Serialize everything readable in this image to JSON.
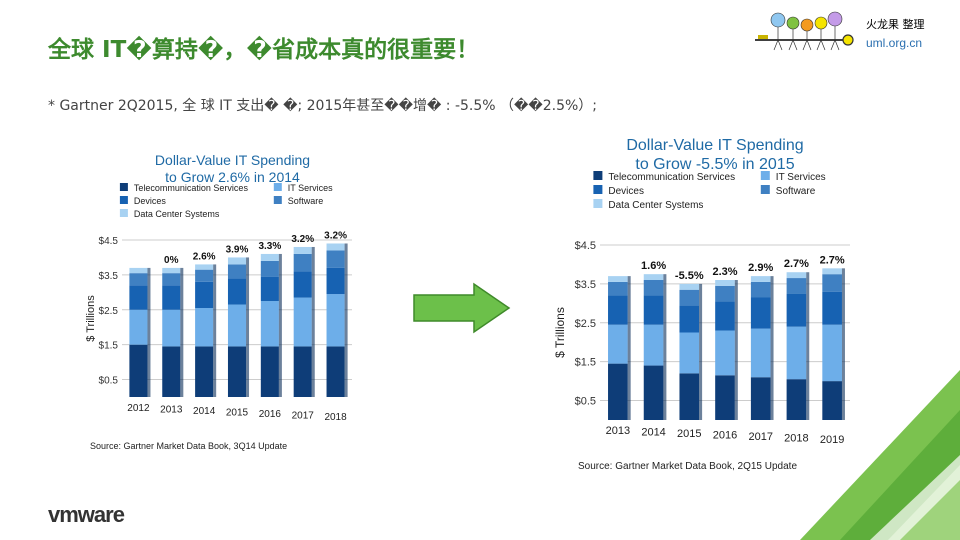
{
  "slide": {
    "title": "全球 IT�算持�，�省成本真的很重要！",
    "subtitle": "* Gartner 2Q2015, 全 球 IT 支出� �; 2015年甚至��增� : -5.5% （��2.5%）;",
    "logo_org": "火龙果 整理",
    "logo_url": "uml.org.cn",
    "brand": "vmware",
    "title_color": "#3d8a2e",
    "arrow_color": "#6cc04a"
  },
  "chart_data": [
    {
      "type": "bar",
      "stacked": true,
      "title": [
        "Dollar-Value IT Spending",
        "to Grow 2.6% in 2014"
      ],
      "ylabel": "$ Trillions",
      "yticks": [
        "$0.5",
        "$1.5",
        "$2.5",
        "$3.5",
        "$4.5"
      ],
      "ylim": [
        0,
        4.5
      ],
      "legend": "top",
      "categories": [
        "2012",
        "2013",
        "2014",
        "2015",
        "2016",
        "2017",
        "2018"
      ],
      "growth_labels": [
        "",
        "0%",
        "2.6%",
        "3.9%",
        "3.3%",
        "3.2%",
        "3.2%"
      ],
      "series": [
        {
          "name": "Telecommunication Services",
          "color": "#0e3d78",
          "values": [
            1.5,
            1.45,
            1.45,
            1.45,
            1.45,
            1.45,
            1.45
          ]
        },
        {
          "name": "IT Services",
          "color": "#6daee9",
          "values": [
            1.0,
            1.05,
            1.1,
            1.2,
            1.3,
            1.4,
            1.5
          ]
        },
        {
          "name": "Devices",
          "color": "#1762b2",
          "values": [
            0.7,
            0.7,
            0.75,
            0.75,
            0.7,
            0.75,
            0.75
          ]
        },
        {
          "name": "Software",
          "color": "#3f80c2",
          "values": [
            0.35,
            0.35,
            0.35,
            0.4,
            0.45,
            0.5,
            0.5
          ]
        },
        {
          "name": "Data Center Systems",
          "color": "#a8d2f2",
          "values": [
            0.15,
            0.15,
            0.15,
            0.2,
            0.2,
            0.2,
            0.2
          ]
        }
      ],
      "source": "Source: Gartner Market Data Book, 3Q14 Update"
    },
    {
      "type": "bar",
      "stacked": true,
      "title": [
        "Dollar-Value IT Spending",
        "to Grow -5.5% in 2015"
      ],
      "ylabel": "$ Trillions",
      "yticks": [
        "$0.5",
        "$1.5",
        "$2.5",
        "$3.5",
        "$4.5"
      ],
      "ylim": [
        0,
        4.5
      ],
      "legend": "top",
      "categories": [
        "2013",
        "2014",
        "2015",
        "2016",
        "2017",
        "2018",
        "2019"
      ],
      "growth_labels": [
        "",
        "1.6%",
        "-5.5%",
        "2.3%",
        "2.9%",
        "2.7%",
        "2.7%"
      ],
      "series": [
        {
          "name": "Telecommunication Services",
          "color": "#0e3d78",
          "values": [
            1.45,
            1.4,
            1.2,
            1.15,
            1.1,
            1.05,
            1.0
          ]
        },
        {
          "name": "IT Services",
          "color": "#6daee9",
          "values": [
            1.0,
            1.05,
            1.05,
            1.15,
            1.25,
            1.35,
            1.45
          ]
        },
        {
          "name": "Devices",
          "color": "#1762b2",
          "values": [
            0.75,
            0.75,
            0.7,
            0.75,
            0.8,
            0.85,
            0.85
          ]
        },
        {
          "name": "Software",
          "color": "#3f80c2",
          "values": [
            0.35,
            0.4,
            0.4,
            0.4,
            0.4,
            0.4,
            0.45
          ]
        },
        {
          "name": "Data Center Systems",
          "color": "#a8d2f2",
          "values": [
            0.15,
            0.15,
            0.15,
            0.15,
            0.15,
            0.15,
            0.15
          ]
        }
      ],
      "legend_labels": [
        "Telecommunication Services",
        "Devices",
        "Data Center Systems",
        "IT Services",
        "Software"
      ],
      "source": "Source: Gartner Market Data Book, 2Q15 Update"
    }
  ]
}
